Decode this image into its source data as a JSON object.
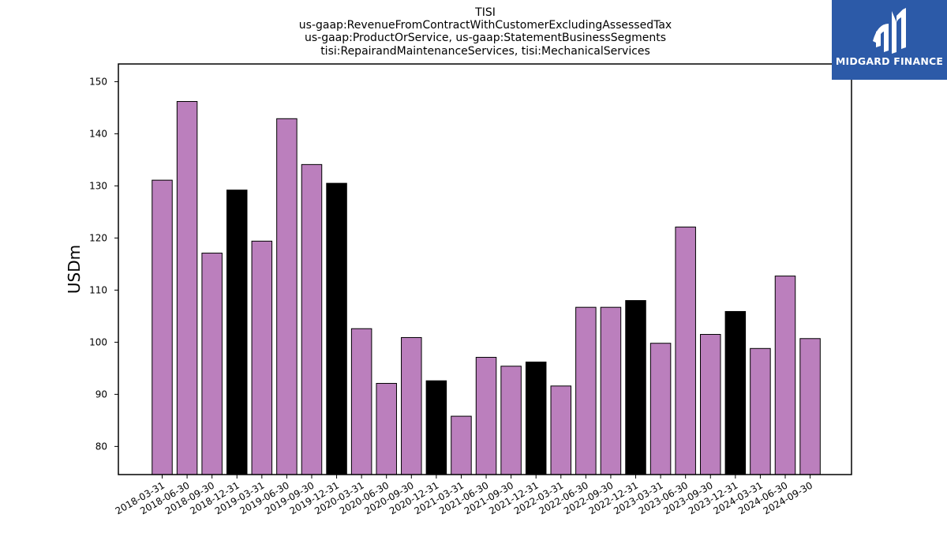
{
  "chart_data": {
    "type": "bar",
    "title_lines": [
      "TISI",
      "us-gaap:RevenueFromContractWithCustomerExcludingAssessedTax",
      "us-gaap:ProductOrService, us-gaap:StatementBusinessSegments",
      "tisi:RepairandMaintenanceServices, tisi:MechanicalServices"
    ],
    "xlabel": "",
    "ylabel": "USDm",
    "ylim": [
      74.6,
      153.4
    ],
    "yticks": [
      80,
      90,
      100,
      110,
      120,
      130,
      140,
      150
    ],
    "categories": [
      "2018-03-31",
      "2018-06-30",
      "2018-09-30",
      "2018-12-31",
      "2019-03-31",
      "2019-06-30",
      "2019-09-30",
      "2019-12-31",
      "2020-03-31",
      "2020-06-30",
      "2020-09-30",
      "2020-12-31",
      "2021-03-31",
      "2021-06-30",
      "2021-09-30",
      "2021-12-31",
      "2022-03-31",
      "2022-06-30",
      "2022-09-30",
      "2022-12-31",
      "2023-03-31",
      "2023-06-30",
      "2023-09-30",
      "2023-12-31",
      "2024-03-31",
      "2024-06-30",
      "2024-09-30"
    ],
    "values": [
      131.1,
      146.2,
      117.1,
      129.2,
      119.4,
      142.9,
      134.1,
      130.5,
      102.6,
      92.1,
      100.9,
      92.6,
      85.8,
      97.1,
      95.4,
      96.2,
      91.6,
      106.7,
      106.7,
      108.0,
      99.8,
      122.1,
      101.5,
      105.9,
      98.8,
      112.7,
      100.7
    ],
    "bar_colors": [
      "#bb7fbd",
      "#bb7fbd",
      "#bb7fbd",
      "#000000",
      "#bb7fbd",
      "#bb7fbd",
      "#bb7fbd",
      "#000000",
      "#bb7fbd",
      "#bb7fbd",
      "#bb7fbd",
      "#000000",
      "#bb7fbd",
      "#bb7fbd",
      "#bb7fbd",
      "#000000",
      "#bb7fbd",
      "#bb7fbd",
      "#bb7fbd",
      "#000000",
      "#bb7fbd",
      "#bb7fbd",
      "#bb7fbd",
      "#000000",
      "#bb7fbd",
      "#bb7fbd",
      "#bb7fbd"
    ],
    "bar_edge_color": "#000000",
    "grid": false,
    "x_tick_rotation_deg": 30
  },
  "logo": {
    "text": "MIDGARD FINANCE",
    "background": "#2c5aa8",
    "text_color": "#ffffff"
  }
}
